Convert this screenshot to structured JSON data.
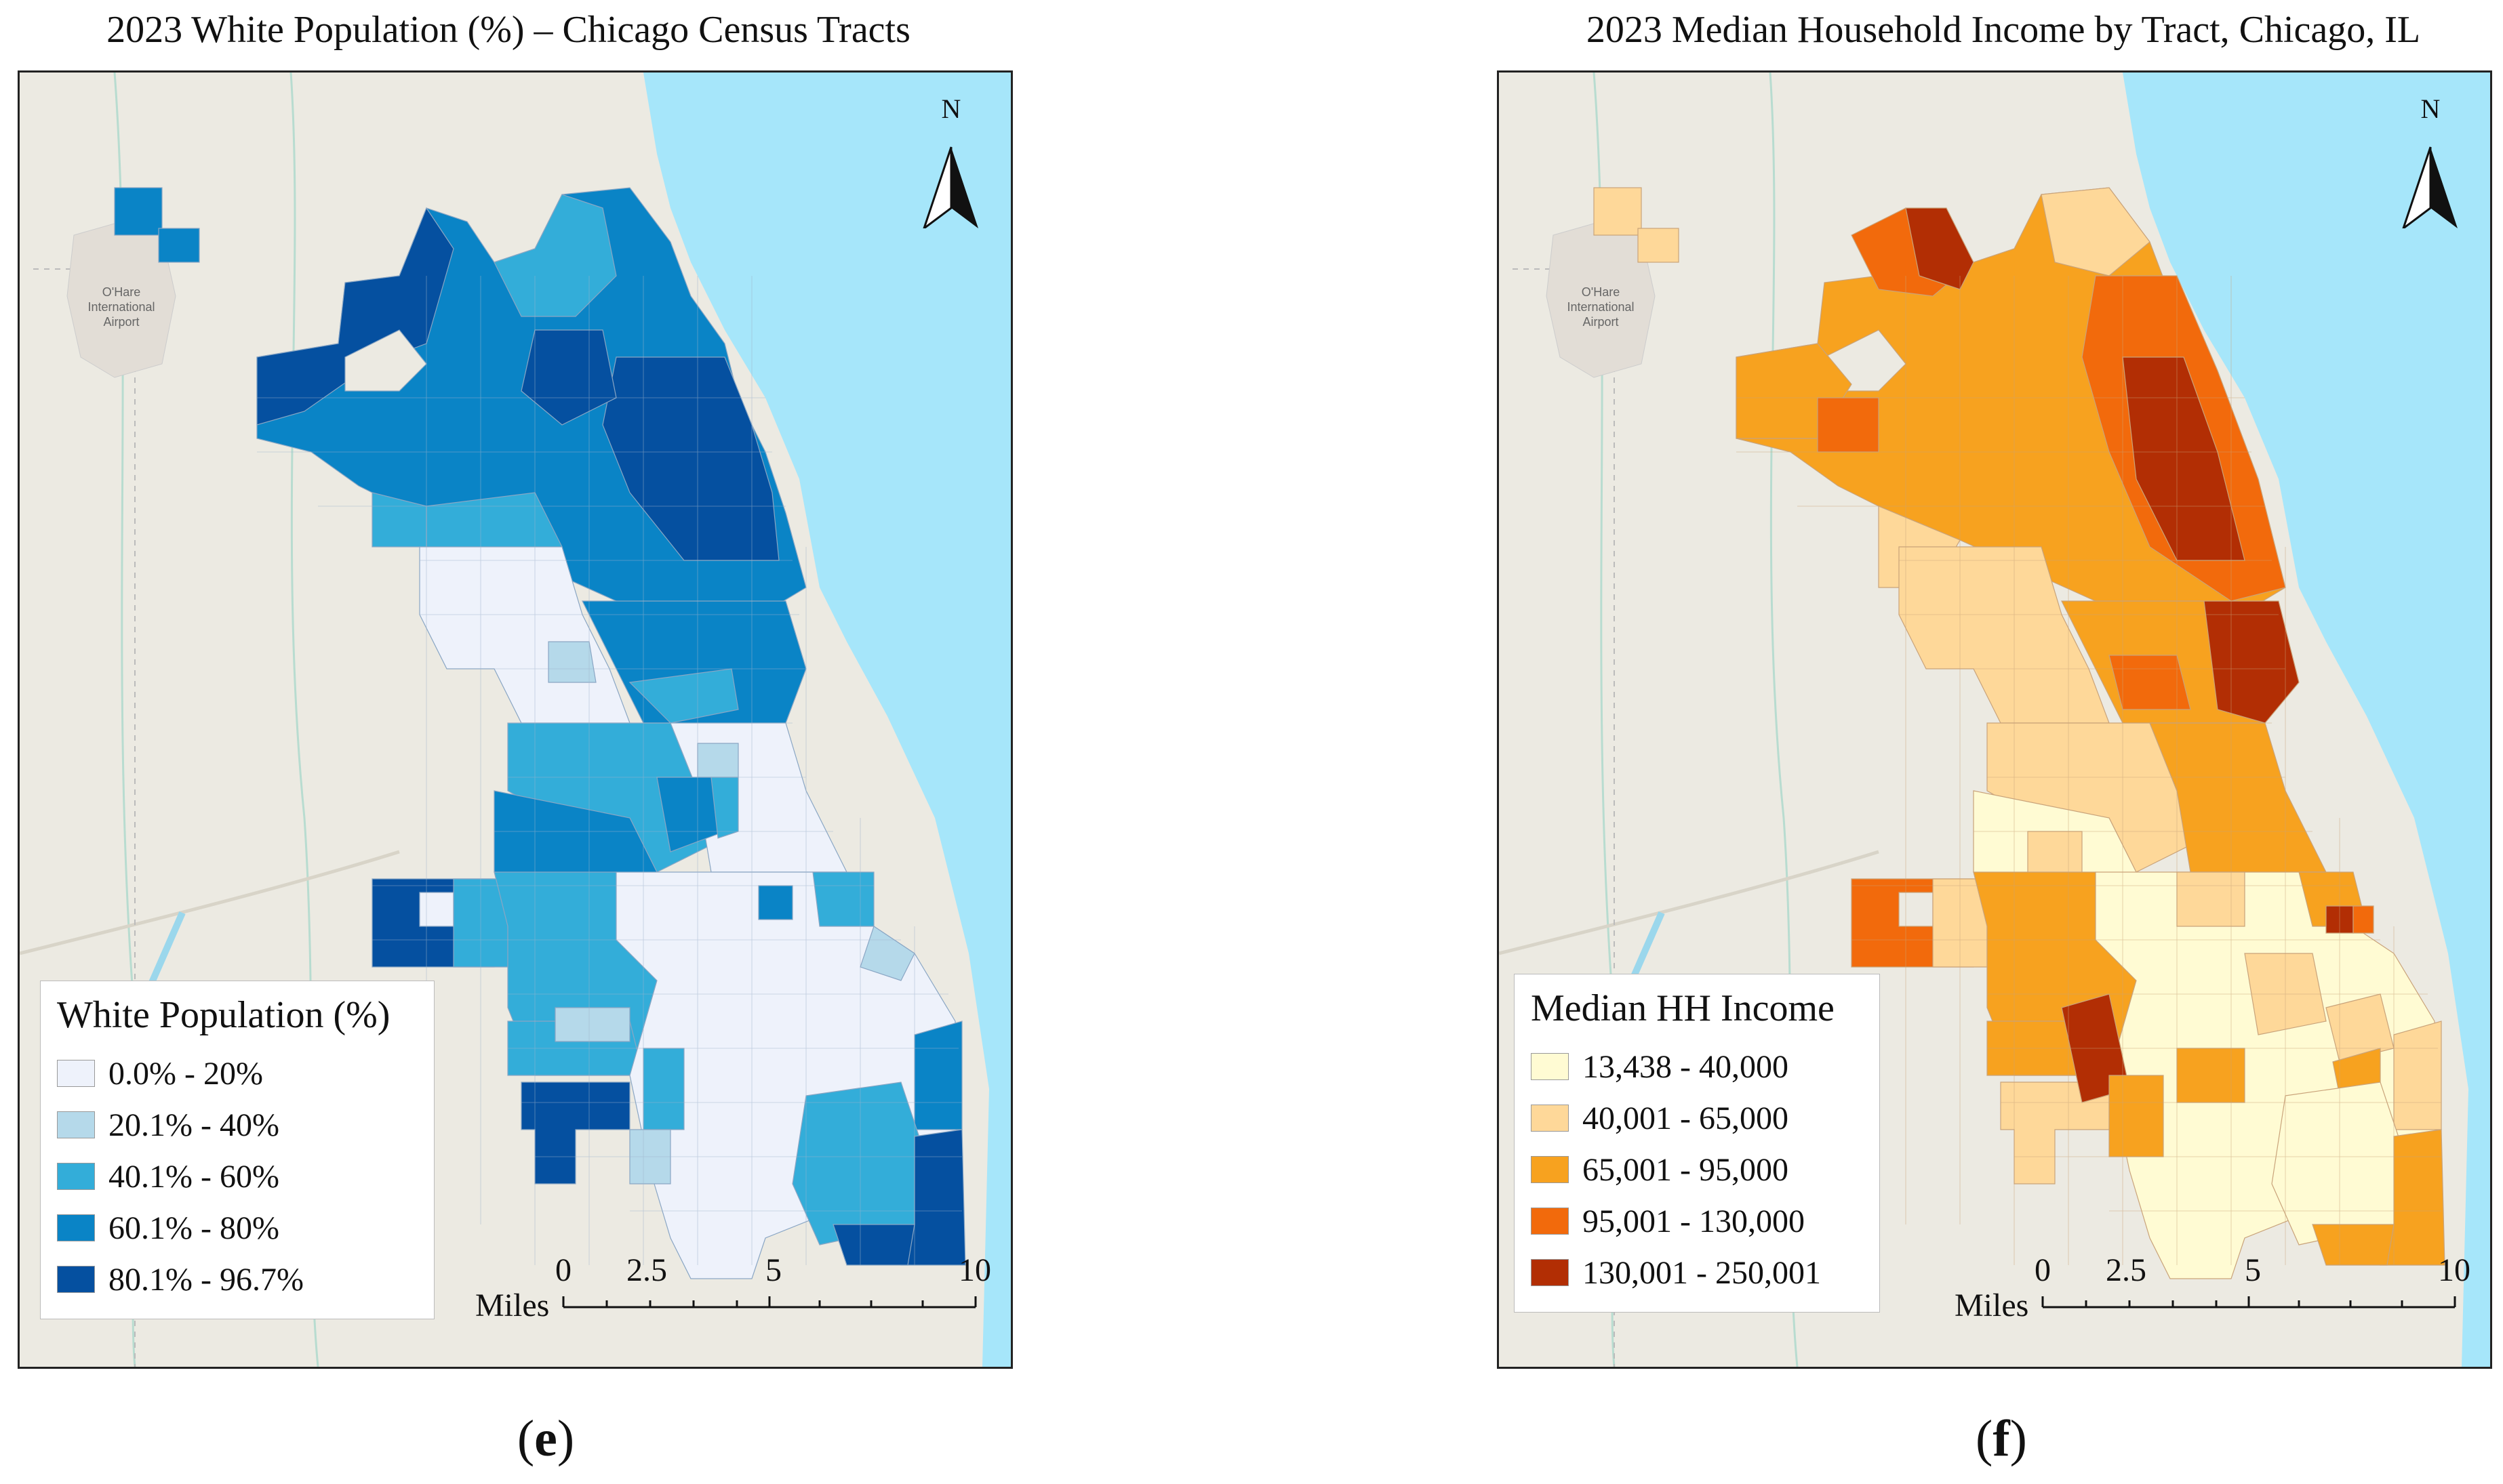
{
  "figure": {
    "left_title": "2023 White Population (%) – Chicago Census Tracts",
    "right_title": "2023 Median Household Income by Tract, Chicago, IL",
    "left_panel_label": "(e)",
    "left_panel_letter": "e",
    "right_panel_label": "(f)",
    "right_panel_letter": "f"
  },
  "basemap": {
    "airport_line1": "O'Hare",
    "airport_line2": "International",
    "airport_line3": "Airport",
    "land_color": "#eceae2",
    "water_color": "#a6e6fa"
  },
  "north_arrow": {
    "label": "N"
  },
  "scale_bar": {
    "unit": "Miles",
    "ticks": [
      "0",
      "2.5",
      "5",
      "10"
    ]
  },
  "left_map": {
    "legend_title": "White Population (%)",
    "classes": [
      {
        "label": "0.0% - 20%",
        "color": "#eef2fb"
      },
      {
        "label": "20.1% - 40%",
        "color": "#b5d9ea"
      },
      {
        "label": "40.1% - 60%",
        "color": "#33add9"
      },
      {
        "label": "60.1% - 80%",
        "color": "#0a84c6"
      },
      {
        "label": "80.1% - 96.7%",
        "color": "#0550a0"
      }
    ]
  },
  "right_map": {
    "legend_title": "Median HH Income",
    "classes": [
      {
        "label": "13,438 - 40,000",
        "color": "#fffbd3"
      },
      {
        "label": "40,001 - 65,000",
        "color": "#fed899"
      },
      {
        "label": "65,001 - 95,000",
        "color": "#f7a21f"
      },
      {
        "label": "95,001 - 130,000",
        "color": "#f26a0c"
      },
      {
        "label": "130,001 - 250,001",
        "color": "#b22e04"
      }
    ]
  }
}
